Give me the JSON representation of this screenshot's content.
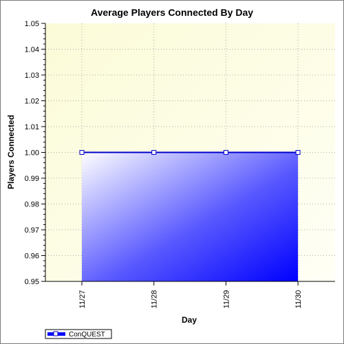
{
  "chart_data": {
    "type": "area",
    "title": "Average Players Connected By Day",
    "xlabel": "Day",
    "ylabel": "Players Connected",
    "categories": [
      "11/27",
      "11/28",
      "11/29",
      "11/30"
    ],
    "series": [
      {
        "name": "ConQUEST",
        "values": [
          1.0,
          1.0,
          1.0,
          1.0
        ],
        "color": "#0000ff"
      }
    ],
    "ylim": [
      0.95,
      1.05
    ],
    "yticks": [
      "0.95",
      "0.96",
      "0.97",
      "0.98",
      "0.99",
      "1.00",
      "1.01",
      "1.02",
      "1.03",
      "1.04",
      "1.05"
    ],
    "grid": true,
    "legend_position": "bottom-left",
    "colors": {
      "plot_background_top_right": "#fffff0",
      "plot_background": "#fefee0",
      "area_fill_light": "#ffffff",
      "area_fill_dark": "#0000ff",
      "line": "#0000cc",
      "grid": "#aaaaaa"
    }
  }
}
